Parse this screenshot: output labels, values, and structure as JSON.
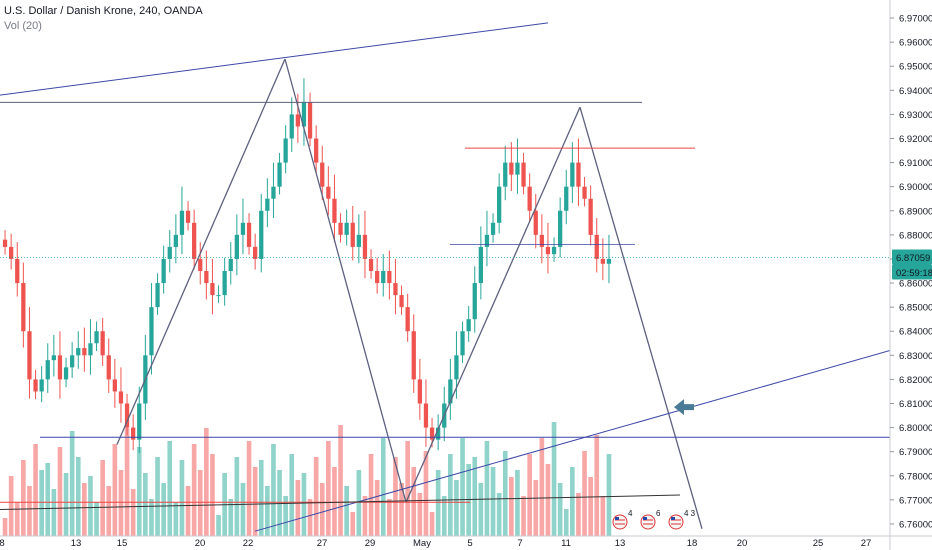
{
  "header": {
    "title": "U.S. Dollar / Danish Krone, 240, OANDA",
    "volume_label": "Vol (20)"
  },
  "price_axis": {
    "ticks": [
      "6.97000",
      "6.96000",
      "6.95000",
      "6.94000",
      "6.93000",
      "6.92000",
      "6.91000",
      "6.90000",
      "6.89000",
      "6.88000",
      "6.87000",
      "6.86000",
      "6.85000",
      "6.84000",
      "6.83000",
      "6.82000",
      "6.81000",
      "6.80000",
      "6.79000",
      "6.78000",
      "6.77000",
      "6.76000"
    ],
    "last_price": "6.87059",
    "countdown": "02:59:18"
  },
  "time_axis": {
    "labels": [
      "8",
      "13",
      "15",
      "20",
      "22",
      "27",
      "29",
      "May",
      "5",
      "7",
      "11",
      "13",
      "18",
      "20",
      "25",
      "27"
    ]
  },
  "events": [
    "4",
    "6",
    "4 3"
  ],
  "colors": {
    "up": "#26a69a",
    "down": "#ef5350",
    "vol_up": "#8fd3ca",
    "vol_down": "#f7a8a6",
    "drawing_blue": "#3d47a8",
    "drawing_dark": "#5d6180",
    "resistance_red": "#ef4444",
    "arrow": "#4a7b96",
    "last_price_line": "#26a69a"
  },
  "chart_data": {
    "type": "candlestick",
    "symbol": "USD/DKK",
    "timeframe": "240",
    "ylim": [
      6.755,
      6.975
    ],
    "close_series": [
      6.875,
      6.87,
      6.86,
      6.84,
      6.82,
      6.815,
      6.82,
      6.828,
      6.83,
      6.82,
      6.825,
      6.83,
      6.833,
      6.83,
      6.835,
      6.84,
      6.83,
      6.82,
      6.815,
      6.81,
      6.8,
      6.795,
      6.81,
      6.83,
      6.85,
      6.86,
      6.87,
      6.875,
      6.88,
      6.89,
      6.885,
      6.87,
      6.865,
      6.86,
      6.855,
      6.855,
      6.865,
      6.87,
      6.88,
      6.885,
      6.875,
      6.87,
      6.89,
      6.895,
      6.9,
      6.91,
      6.92,
      6.93,
      6.925,
      6.935,
      6.92,
      6.91,
      6.9,
      6.895,
      6.885,
      6.88,
      6.885,
      6.875,
      6.88,
      6.87,
      6.865,
      6.86,
      6.865,
      6.86,
      6.855,
      6.85,
      6.84,
      6.82,
      6.81,
      6.8,
      6.795,
      6.8,
      6.81,
      6.82,
      6.83,
      6.84,
      6.845,
      6.86,
      6.875,
      6.88,
      6.885,
      6.9,
      6.91,
      6.905,
      6.91,
      6.9,
      6.89,
      6.88,
      6.875,
      6.872,
      6.875,
      6.89,
      6.9,
      6.91,
      6.9,
      6.895,
      6.88,
      6.87,
      6.868,
      6.87
    ],
    "drawings": [
      {
        "type": "zigzag_pattern",
        "points": [
          6.793,
          6.953,
          6.769,
          6.933,
          6.758
        ]
      },
      {
        "type": "horizontal",
        "price": 6.935
      },
      {
        "type": "horizontal",
        "price": 6.916
      },
      {
        "type": "horizontal",
        "price": 6.796
      },
      {
        "type": "trendline"
      },
      {
        "type": "trendline"
      }
    ]
  }
}
